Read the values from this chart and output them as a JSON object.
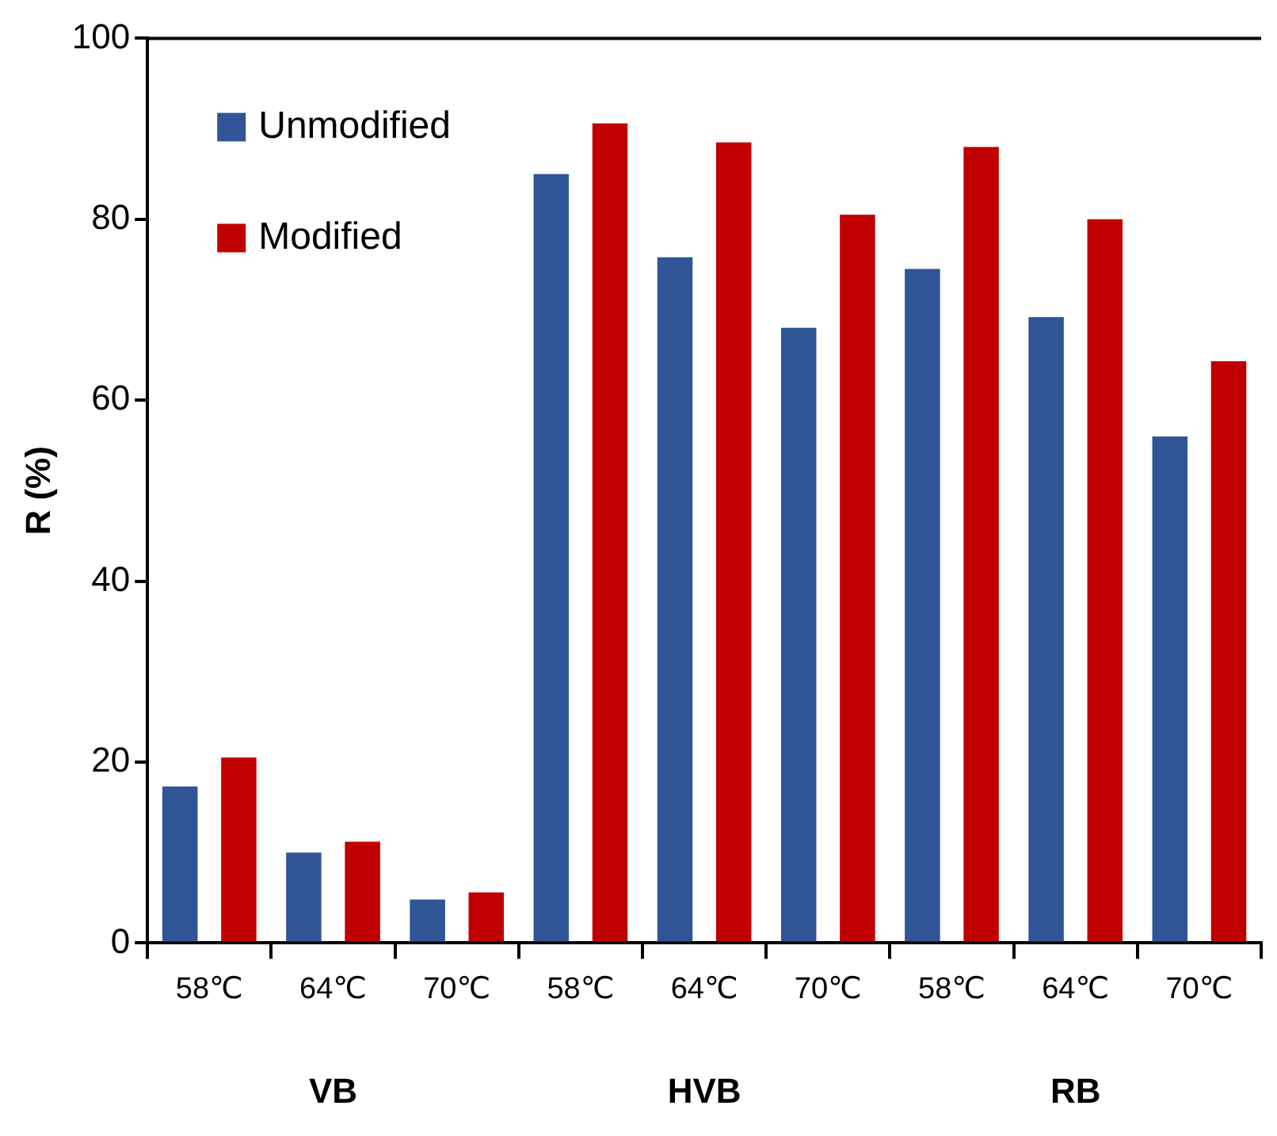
{
  "chart_data": {
    "type": "bar",
    "ylabel": "R (%)",
    "categories": [
      "58℃",
      "64℃",
      "70℃",
      "58℃",
      "64℃",
      "70℃",
      "58℃",
      "64℃",
      "70℃"
    ],
    "series": [
      {
        "name": "Unmodified",
        "color": "#2f5597",
        "values": [
          17.3,
          10,
          4.8,
          85,
          75.8,
          68,
          74.5,
          69.2,
          56
        ]
      },
      {
        "name": "Modified",
        "color": "#c00000",
        "values": [
          20.5,
          11.2,
          5.6,
          90.6,
          88.5,
          80.5,
          88,
          80,
          64.3
        ]
      }
    ],
    "annotations": [
      "VB",
      "HVB",
      "RB"
    ],
    "ylim": [
      0,
      100
    ],
    "yticks": [
      0,
      20,
      40,
      60,
      80,
      100
    ],
    "grid": false,
    "legend": "top left"
  }
}
